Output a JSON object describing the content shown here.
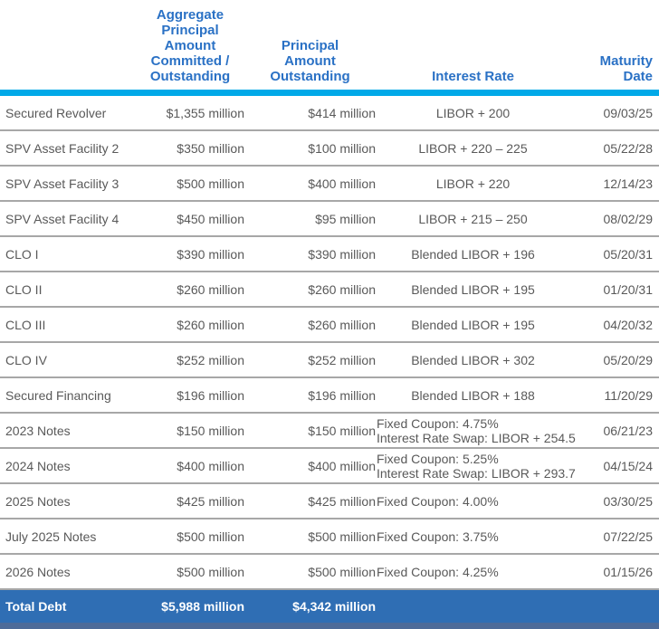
{
  "colors": {
    "header_text": "#2a71c5",
    "header_rule": "#00a9e8",
    "row_divider": "#a7a7a7",
    "body_text": "#595959",
    "total_row_bg": "#2f6eb4",
    "total_row_text": "#ffffff",
    "footer_bar": "#4d6b99"
  },
  "table": {
    "headers": {
      "facility": "",
      "committed": "Aggregate\nPrincipal Amount\nCommitted /\nOutstanding",
      "outstanding": "Principal\nAmount\nOutstanding",
      "interest_rate": "Interest Rate",
      "maturity": "Maturity\nDate"
    },
    "rows": [
      {
        "name": "Secured Revolver",
        "committed": "$1,355 million",
        "outstanding": "$414 million",
        "rate1": "LIBOR + 200",
        "maturity": "09/03/25"
      },
      {
        "name": "SPV Asset Facility 2",
        "committed": "$350 million",
        "outstanding": "$100 million",
        "rate1": "LIBOR + 220 – 225",
        "maturity": "05/22/28"
      },
      {
        "name": "SPV Asset Facility 3",
        "committed": "$500 million",
        "outstanding": "$400 million",
        "rate1": "LIBOR + 220",
        "maturity": "12/14/23"
      },
      {
        "name": "SPV Asset Facility 4",
        "committed": "$450 million",
        "outstanding": "$95 million",
        "rate1": "LIBOR + 215 – 250",
        "maturity": "08/02/29"
      },
      {
        "name": "CLO I",
        "committed": "$390 million",
        "outstanding": "$390 million",
        "rate1": "Blended LIBOR + 196",
        "maturity": "05/20/31"
      },
      {
        "name": "CLO II",
        "committed": "$260 million",
        "outstanding": "$260 million",
        "rate1": "Blended LIBOR + 195",
        "maturity": "01/20/31"
      },
      {
        "name": "CLO III",
        "committed": "$260 million",
        "outstanding": "$260 million",
        "rate1": "Blended LIBOR + 195",
        "maturity": "04/20/32"
      },
      {
        "name": "CLO IV",
        "committed": "$252 million",
        "outstanding": "$252 million",
        "rate1": "Blended LIBOR + 302",
        "maturity": "05/20/29"
      },
      {
        "name": "Secured Financing",
        "committed": "$196 million",
        "outstanding": "$196 million",
        "rate1": "Blended LIBOR + 188",
        "maturity": "11/20/29"
      },
      {
        "name": "2023 Notes",
        "committed": "$150 million",
        "outstanding": "$150 million",
        "rate1": "Fixed Coupon: 4.75%",
        "rate2": "Interest Rate Swap: LIBOR + 254.5",
        "maturity": "06/21/23"
      },
      {
        "name": "2024 Notes",
        "committed": "$400 million",
        "outstanding": "$400 million",
        "rate1": "Fixed Coupon: 5.25%",
        "rate2": "Interest Rate Swap: LIBOR + 293.7",
        "maturity": "04/15/24"
      },
      {
        "name": "2025 Notes",
        "committed": "$425 million",
        "outstanding": "$425 million",
        "rate1": "Fixed Coupon: 4.00%",
        "maturity": "03/30/25"
      },
      {
        "name": "July 2025 Notes",
        "committed": "$500 million",
        "outstanding": "$500 million",
        "rate1": "Fixed Coupon: 3.75%",
        "maturity": "07/22/25"
      },
      {
        "name": "2026 Notes",
        "committed": "$500 million",
        "outstanding": "$500 million",
        "rate1": "Fixed Coupon: 4.25%",
        "maturity": "01/15/26"
      }
    ],
    "total": {
      "name": "Total Debt",
      "committed": "$5,988 million",
      "outstanding": "$4,342 million"
    }
  }
}
